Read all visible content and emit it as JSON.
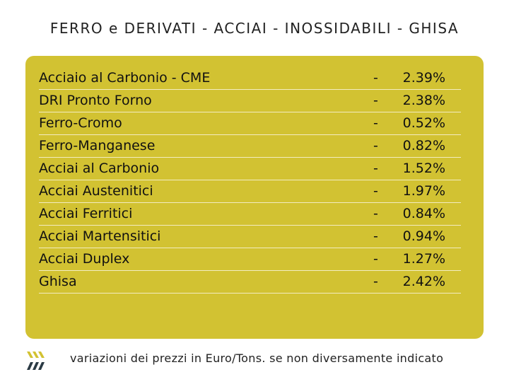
{
  "title": "FERRO e DERIVATI - ACCIAI - INOSSIDABILI - GHISA",
  "rows": [
    {
      "name": "Acciaio al Carbonio - CME",
      "sign": "-",
      "value": "2.39%"
    },
    {
      "name": "DRI Pronto Forno",
      "sign": "-",
      "value": "2.38%"
    },
    {
      "name": "Ferro-Cromo",
      "sign": "-",
      "value": "0.52%"
    },
    {
      "name": "Ferro-Manganese",
      "sign": "-",
      "value": "0.82%"
    },
    {
      "name": "Acciai al Carbonio",
      "sign": "-",
      "value": "1.52%"
    },
    {
      "name": "Acciai Austenitici",
      "sign": "-",
      "value": "1.97%"
    },
    {
      "name": "Acciai Ferritici",
      "sign": "-",
      "value": "0.84%"
    },
    {
      "name": "Acciai Martensitici",
      "sign": "-",
      "value": "0.94%"
    },
    {
      "name": "Acciai Duplex",
      "sign": "-",
      "value": "1.27%"
    },
    {
      "name": "Ghisa",
      "sign": "-",
      "value": "2.42%"
    }
  ],
  "footer": "variazioni dei prezzi in Euro/Tons. se non diversamente indicato",
  "colors": {
    "panel": "#d2c232",
    "logo_top": "#d2c232",
    "logo_bottom": "#2b3a44"
  },
  "logo_icon": "slash-stripes-logo-icon"
}
